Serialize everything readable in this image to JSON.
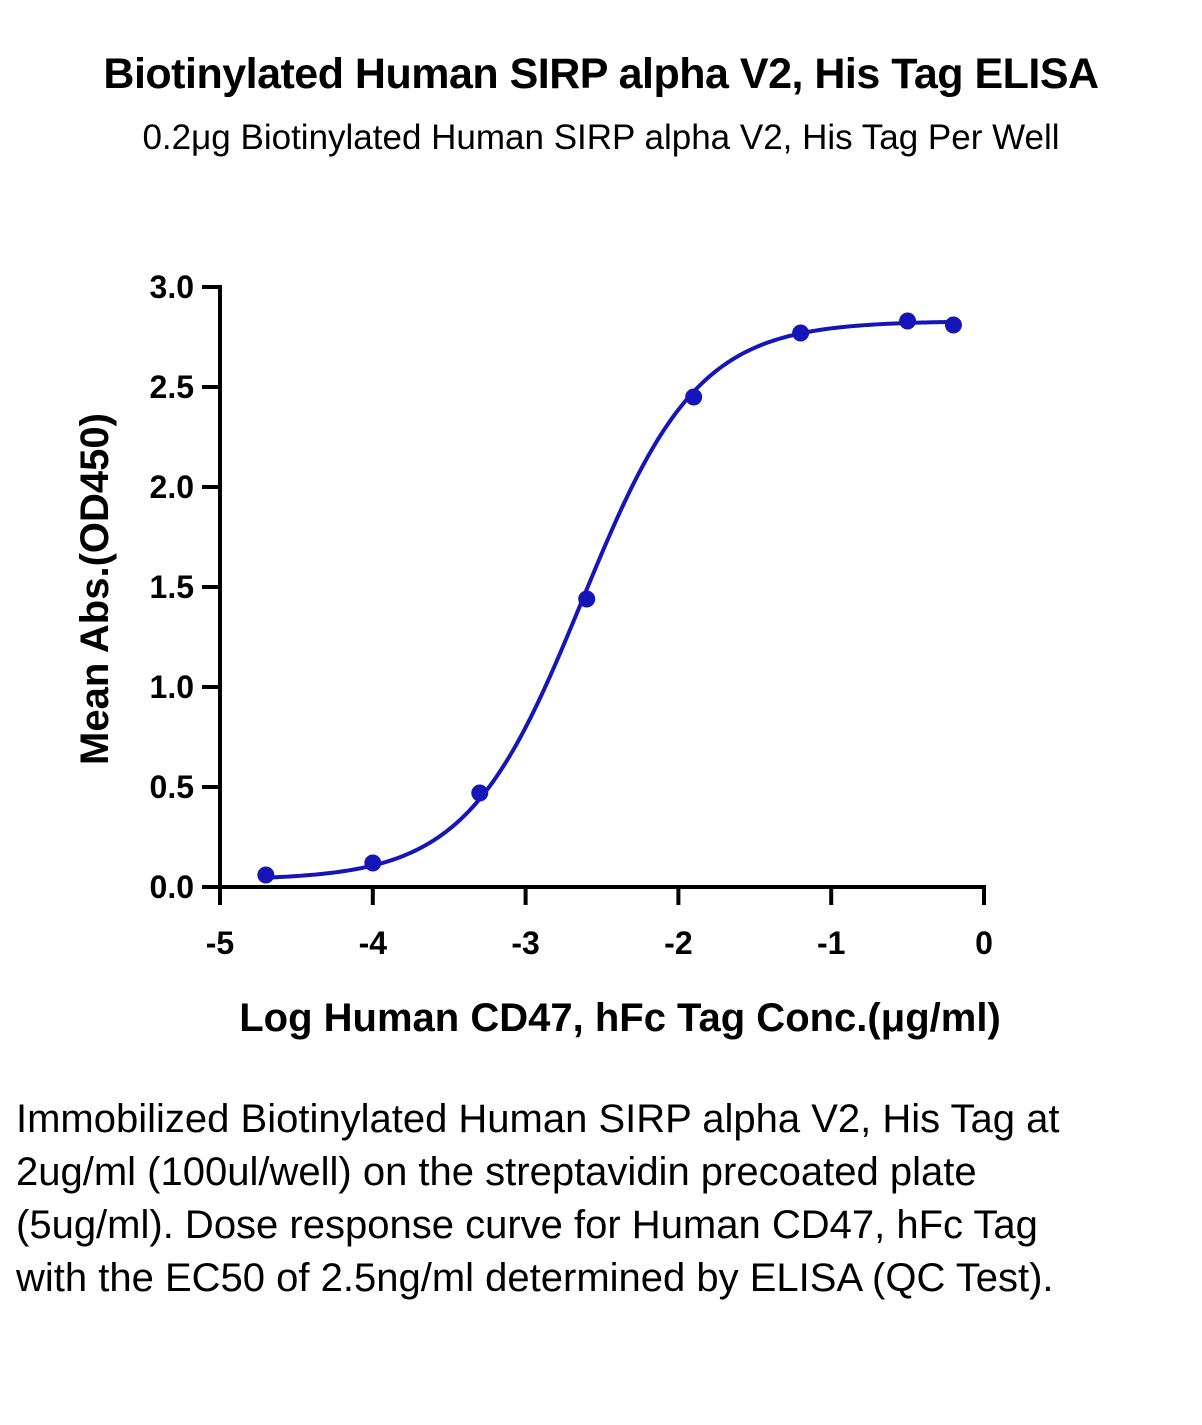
{
  "chart_data": {
    "type": "scatter",
    "title": "Biotinylated Human SIRP alpha V2, His Tag ELISA",
    "subtitle": "0.2μg Biotinylated Human SIRP alpha V2, His Tag Per Well",
    "xlabel": "Log Human CD47, hFc Tag Conc.(μg/ml)",
    "ylabel": "Mean Abs.(OD450)",
    "xlim": [
      -5,
      0
    ],
    "ylim": [
      0,
      3.0
    ],
    "xticks": [
      "-5",
      "-4",
      "-3",
      "-2",
      "-1",
      "0"
    ],
    "yticks": [
      "0.0",
      "0.5",
      "1.0",
      "1.5",
      "2.0",
      "2.5",
      "3.0"
    ],
    "grid": false,
    "series": [
      {
        "x": [
          -4.7,
          -4.0,
          -3.3,
          -2.6,
          -1.9,
          -1.2,
          -0.5,
          -0.2
        ],
        "values": [
          0.06,
          0.12,
          0.47,
          1.44,
          2.45,
          2.77,
          2.83,
          2.81
        ],
        "color": "#1515b8",
        "fit": "four-parameter logistic curve"
      }
    ]
  },
  "caption": "Immobilized Biotinylated Human SIRP alpha V2, His Tag at 2ug/ml (100ul/well) on the streptavidin precoated plate (5ug/ml). Dose response curve for Human CD47, hFc Tag with the EC50 of 2.5ng/ml determined by ELISA (QC Test)."
}
